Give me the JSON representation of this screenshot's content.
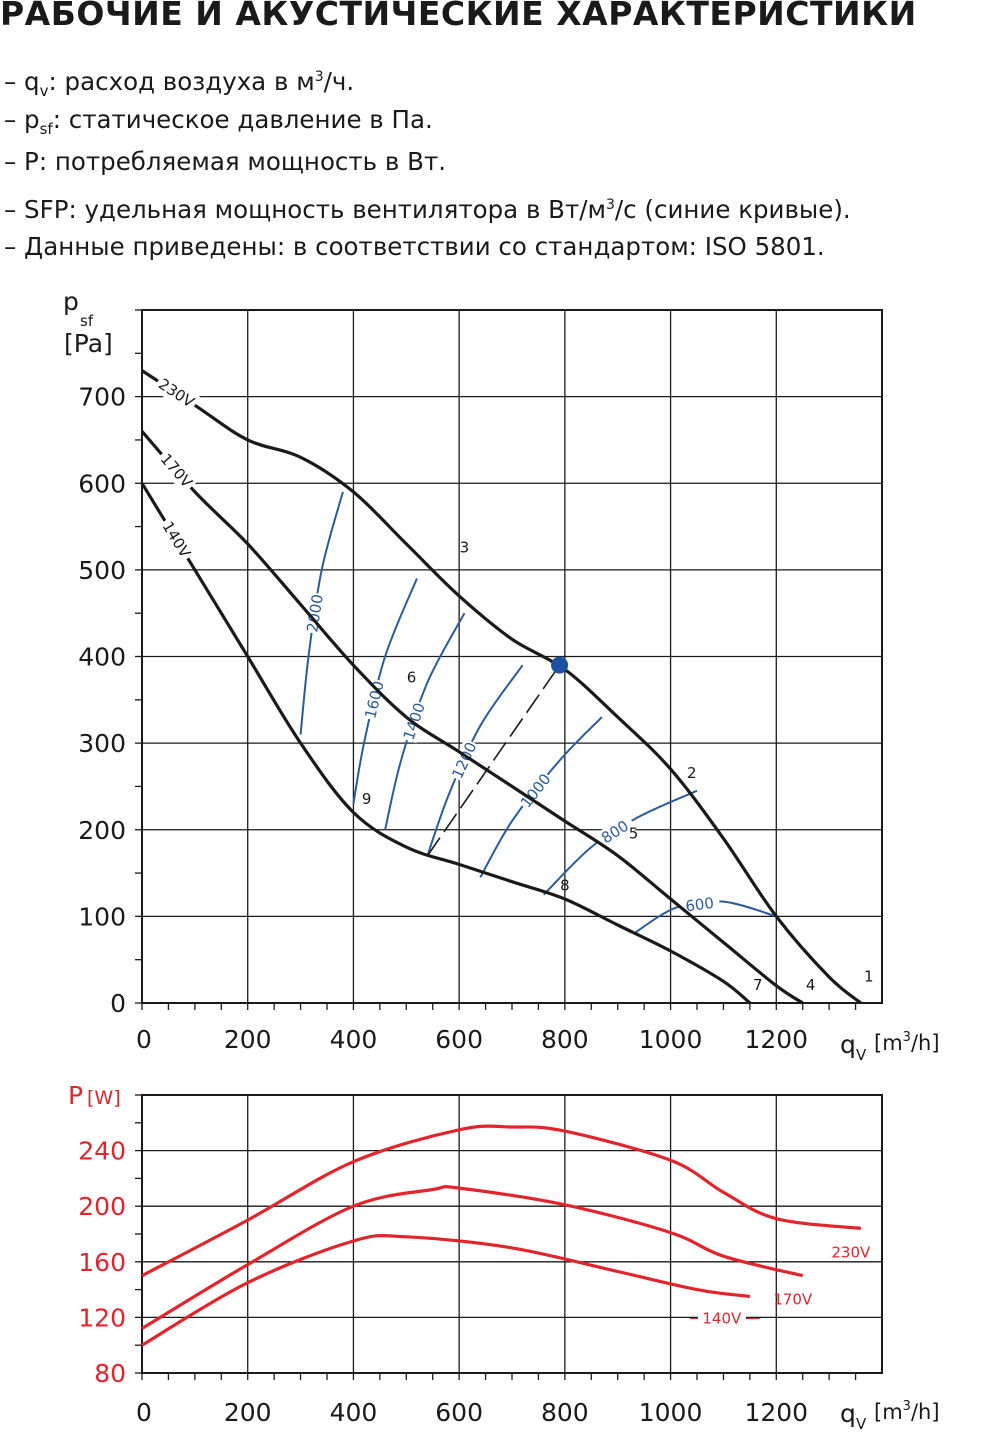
{
  "title": "РАБОЧИЕ И АКУСТИЧЕСКИЕ ХАРАКТЕРИСТИКИ",
  "notes": [
    {
      "dash": "–",
      "sym": "q",
      "sub": "v",
      "text1": ": расход воздуха в м",
      "sup": "3",
      "text2": "/ч."
    },
    {
      "dash": "–",
      "sym": "p",
      "sub": "sf",
      "text1": ": статическое давление в Па.",
      "sup": "",
      "text2": ""
    },
    {
      "dash": "–",
      "sym": "P",
      "sub": "",
      "text1": ": потребляемая мощность в Вт.",
      "sup": "",
      "text2": ""
    },
    {
      "dash": "–",
      "sym": "SFP",
      "sub": "",
      "text1": ": удельная мощность вентилятора в Вт/м",
      "sup": "3",
      "text2": "/с (синие кривые)."
    },
    {
      "dash": "–",
      "sym": "Данные приведены",
      "sub": "",
      "text1": ": в соответствии со стандартом: ISO 5801.",
      "sup": "",
      "text2": ""
    }
  ],
  "colors": {
    "fan_curve": "#1a1a1a",
    "sfp_curve": "#2a5b9e",
    "power_curve": "#e3242b",
    "grid": "#1a1a1a",
    "operating_point": "#1f4fa0"
  },
  "chart_data": [
    {
      "type": "line",
      "ylabel_main": "p",
      "ylabel_sub": "sf",
      "ylabel_unit": "[Pa]",
      "xlabel_main": "q",
      "xlabel_sub": "V",
      "xlabel_unit_pre": "[m",
      "xlabel_unit_sup": "3",
      "xlabel_unit_post": "/h]",
      "xlim": [
        0,
        1400
      ],
      "ylim": [
        0,
        800
      ],
      "x_ticks": [
        "0",
        "200",
        "400",
        "600",
        "800",
        "1000",
        "1200"
      ],
      "y_ticks": [
        "0",
        "100",
        "200",
        "300",
        "400",
        "500",
        "600",
        "700"
      ],
      "grid": true,
      "fan_curves": [
        {
          "name": "230V",
          "points": [
            [
              0,
              730
            ],
            [
              100,
              690
            ],
            [
              200,
              650
            ],
            [
              300,
              630
            ],
            [
              400,
              590
            ],
            [
              500,
              530
            ],
            [
              600,
              470
            ],
            [
              700,
              420
            ],
            [
              800,
              385
            ],
            [
              900,
              330
            ],
            [
              1000,
              270
            ],
            [
              1100,
              190
            ],
            [
              1200,
              100
            ],
            [
              1300,
              30
            ],
            [
              1360,
              0
            ]
          ]
        },
        {
          "name": "170V",
          "points": [
            [
              0,
              660
            ],
            [
              100,
              590
            ],
            [
              200,
              530
            ],
            [
              300,
              460
            ],
            [
              400,
              390
            ],
            [
              500,
              330
            ],
            [
              600,
              290
            ],
            [
              700,
              250
            ],
            [
              800,
              210
            ],
            [
              900,
              170
            ],
            [
              1000,
              120
            ],
            [
              1100,
              70
            ],
            [
              1200,
              20
            ],
            [
              1250,
              0
            ]
          ]
        },
        {
          "name": "140V",
          "points": [
            [
              0,
              600
            ],
            [
              100,
              500
            ],
            [
              200,
              400
            ],
            [
              300,
              300
            ],
            [
              400,
              220
            ],
            [
              500,
              180
            ],
            [
              600,
              160
            ],
            [
              700,
              140
            ],
            [
              800,
              120
            ],
            [
              900,
              90
            ],
            [
              1000,
              60
            ],
            [
              1100,
              25
            ],
            [
              1150,
              0
            ]
          ]
        }
      ],
      "sfp_curves": [
        {
          "name": "2000",
          "points": [
            [
              300,
              310
            ],
            [
              315,
              400
            ],
            [
              340,
              500
            ],
            [
              380,
              590
            ]
          ]
        },
        {
          "name": "1600",
          "points": [
            [
              400,
              230
            ],
            [
              420,
              300
            ],
            [
              460,
              400
            ],
            [
              520,
              490
            ]
          ]
        },
        {
          "name": "1400",
          "points": [
            [
              460,
              200
            ],
            [
              490,
              280
            ],
            [
              540,
              370
            ],
            [
              610,
              450
            ]
          ]
        },
        {
          "name": "1200",
          "points": [
            [
              540,
              170
            ],
            [
              580,
              240
            ],
            [
              640,
              320
            ],
            [
              720,
              390
            ]
          ]
        },
        {
          "name": "1000",
          "points": [
            [
              640,
              145
            ],
            [
              700,
              210
            ],
            [
              790,
              280
            ],
            [
              870,
              330
            ]
          ]
        },
        {
          "name": "800",
          "points": [
            [
              760,
              125
            ],
            [
              850,
              180
            ],
            [
              940,
              215
            ],
            [
              1050,
              245
            ]
          ]
        },
        {
          "name": "600",
          "points": [
            [
              930,
              80
            ],
            [
              1010,
              110
            ],
            [
              1100,
              117
            ],
            [
              1200,
              100
            ]
          ]
        }
      ],
      "system_line": {
        "points": [
          [
            540,
            170
          ],
          [
            790,
            390
          ]
        ]
      },
      "operating_point": {
        "x": 790,
        "y": 390
      },
      "point_labels": [
        {
          "label": "1",
          "x": 1375,
          "y": 25
        },
        {
          "label": "2",
          "x": 1040,
          "y": 260
        },
        {
          "label": "3",
          "x": 610,
          "y": 520
        },
        {
          "label": "4",
          "x": 1265,
          "y": 15
        },
        {
          "label": "5",
          "x": 930,
          "y": 190
        },
        {
          "label": "6",
          "x": 510,
          "y": 370
        },
        {
          "label": "7",
          "x": 1165,
          "y": 15
        },
        {
          "label": "8",
          "x": 800,
          "y": 130
        },
        {
          "label": "9",
          "x": 425,
          "y": 230
        }
      ]
    },
    {
      "type": "line",
      "ylabel_main": "P",
      "ylabel_unit": "[W]",
      "xlabel_main": "q",
      "xlabel_sub": "V",
      "xlabel_unit_pre": "[m",
      "xlabel_unit_sup": "3",
      "xlabel_unit_post": "/h]",
      "xlim": [
        0,
        1400
      ],
      "ylim": [
        80,
        280
      ],
      "x_ticks": [
        "0",
        "200",
        "400",
        "600",
        "800",
        "1000",
        "1200"
      ],
      "y_ticks": [
        "80",
        "120",
        "160",
        "200",
        "240"
      ],
      "grid": true,
      "series": [
        {
          "name": "230V",
          "points": [
            [
              0,
              150
            ],
            [
              200,
              190
            ],
            [
              400,
              232
            ],
            [
              600,
              255
            ],
            [
              700,
              257
            ],
            [
              800,
              254
            ],
            [
              1000,
              233
            ],
            [
              1100,
              210
            ],
            [
              1200,
              191
            ],
            [
              1360,
              184
            ]
          ]
        },
        {
          "name": "170V",
          "points": [
            [
              0,
              112
            ],
            [
              200,
              158
            ],
            [
              400,
              200
            ],
            [
              550,
              212
            ],
            [
              600,
              213
            ],
            [
              800,
              201
            ],
            [
              1000,
              181
            ],
            [
              1100,
              164
            ],
            [
              1250,
              150
            ]
          ]
        },
        {
          "name": "140V",
          "points": [
            [
              0,
              100
            ],
            [
              200,
              145
            ],
            [
              400,
              175
            ],
            [
              500,
              178
            ],
            [
              700,
              170
            ],
            [
              900,
              153
            ],
            [
              1050,
              140
            ],
            [
              1150,
              135
            ]
          ]
        }
      ]
    }
  ]
}
